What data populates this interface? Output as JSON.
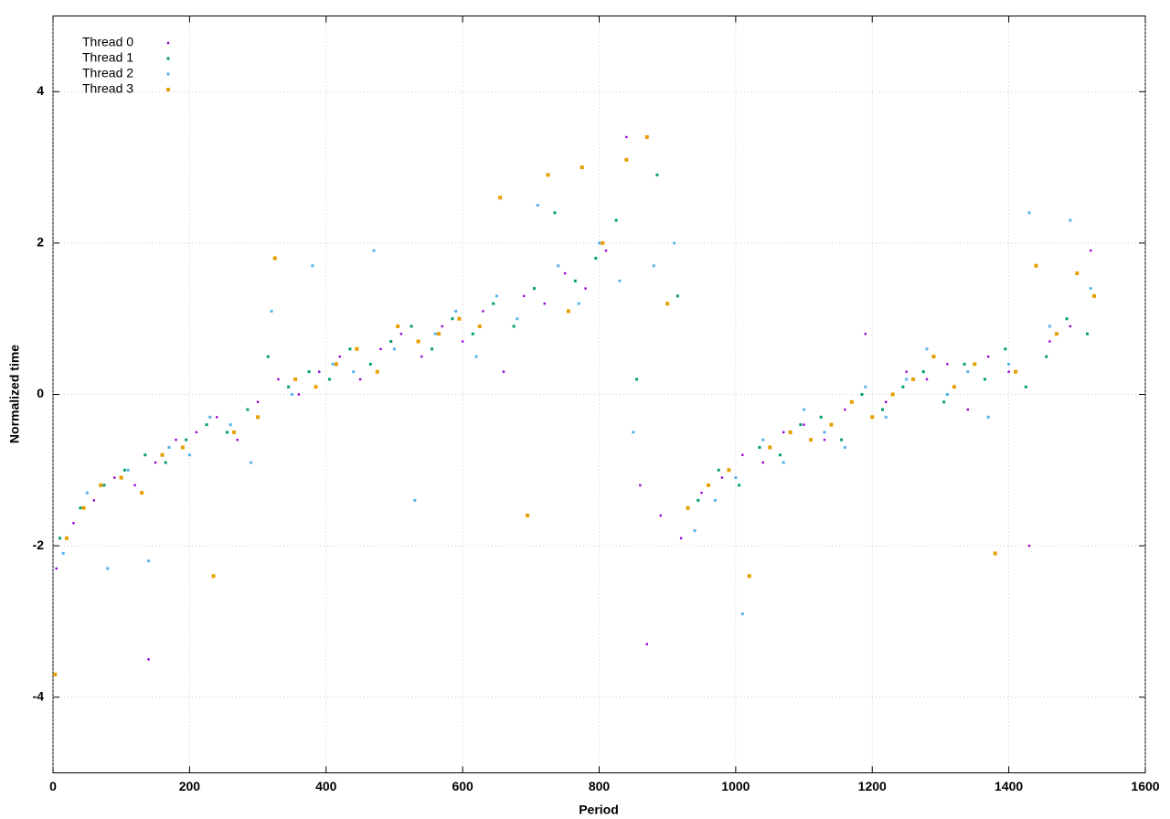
{
  "chart_data": {
    "type": "scatter",
    "x_label": "Period",
    "y_label": "Normalized time",
    "xlim": [
      0,
      1600
    ],
    "ylim": [
      -5,
      5
    ],
    "xticks": [
      0,
      200,
      400,
      600,
      800,
      1000,
      1200,
      1400,
      1600
    ],
    "yticks": [
      -4,
      -2,
      0,
      2,
      4
    ],
    "grid": true,
    "legend": "top-left",
    "series": [
      {
        "name": "Thread 0",
        "color": "#9400d3",
        "x": [
          5,
          30,
          60,
          90,
          120,
          140,
          150,
          180,
          210,
          240,
          270,
          300,
          330,
          360,
          390,
          420,
          450,
          480,
          510,
          540,
          570,
          600,
          630,
          660,
          690,
          720,
          750,
          780,
          810,
          840,
          860,
          870,
          890,
          920,
          950,
          980,
          1010,
          1040,
          1070,
          1100,
          1130,
          1160,
          1190,
          1220,
          1250,
          1280,
          1310,
          1340,
          1370,
          1400,
          1430,
          1460,
          1490,
          1520
        ],
        "values": [
          -2.3,
          -1.7,
          -1.4,
          -1.1,
          -1.2,
          -3.5,
          -0.9,
          -0.6,
          -0.5,
          -0.3,
          -0.6,
          -0.1,
          0.2,
          0.0,
          0.3,
          0.5,
          0.2,
          0.6,
          0.8,
          0.5,
          0.9,
          0.7,
          1.1,
          0.3,
          1.3,
          1.2,
          1.6,
          1.4,
          1.9,
          3.4,
          -1.2,
          -3.3,
          -1.6,
          -1.9,
          -1.3,
          -1.1,
          -0.8,
          -0.9,
          -0.5,
          -0.4,
          -0.6,
          -0.2,
          0.8,
          -0.1,
          0.3,
          0.2,
          0.4,
          -0.2,
          0.5,
          0.3,
          -2.0,
          0.7,
          0.9,
          1.9
        ]
      },
      {
        "name": "Thread 1",
        "color": "#009e73",
        "x": [
          10,
          40,
          75,
          105,
          135,
          165,
          195,
          225,
          255,
          285,
          315,
          345,
          375,
          405,
          435,
          465,
          495,
          525,
          555,
          585,
          615,
          645,
          675,
          705,
          735,
          765,
          795,
          825,
          855,
          885,
          915,
          945,
          975,
          1005,
          1035,
          1065,
          1095,
          1125,
          1155,
          1185,
          1215,
          1245,
          1275,
          1305,
          1335,
          1365,
          1395,
          1425,
          1455,
          1485,
          1515
        ],
        "values": [
          -1.9,
          -1.5,
          -1.2,
          -1.0,
          -0.8,
          -0.9,
          -0.6,
          -0.4,
          -0.5,
          -0.2,
          0.5,
          0.1,
          0.3,
          0.2,
          0.6,
          0.4,
          0.7,
          0.9,
          0.6,
          1.0,
          0.8,
          1.2,
          0.9,
          1.4,
          2.4,
          1.5,
          1.8,
          2.3,
          0.2,
          2.9,
          1.3,
          -1.4,
          -1.0,
          -1.2,
          -0.7,
          -0.8,
          -0.4,
          -0.3,
          -0.6,
          0.0,
          -0.2,
          0.1,
          0.3,
          -0.1,
          0.4,
          0.2,
          0.6,
          0.1,
          0.5,
          1.0,
          0.8
        ]
      },
      {
        "name": "Thread 2",
        "color": "#56b4e9",
        "x": [
          15,
          50,
          80,
          110,
          140,
          170,
          200,
          230,
          260,
          290,
          320,
          350,
          380,
          410,
          440,
          470,
          500,
          530,
          560,
          590,
          620,
          650,
          680,
          710,
          740,
          770,
          800,
          830,
          850,
          880,
          910,
          940,
          970,
          1000,
          1010,
          1040,
          1070,
          1100,
          1130,
          1160,
          1190,
          1220,
          1250,
          1280,
          1310,
          1340,
          1370,
          1400,
          1430,
          1460,
          1490,
          1520
        ],
        "values": [
          -2.1,
          -1.3,
          -2.3,
          -1.0,
          -2.2,
          -0.7,
          -0.8,
          -0.3,
          -0.4,
          -0.9,
          1.1,
          0.0,
          1.7,
          0.4,
          0.3,
          1.9,
          0.6,
          -1.4,
          0.8,
          1.1,
          0.5,
          1.3,
          1.0,
          2.5,
          1.7,
          1.2,
          2.0,
          1.5,
          -0.5,
          1.7,
          2.0,
          -1.8,
          -1.4,
          -1.1,
          -2.9,
          -0.6,
          -0.9,
          -0.2,
          -0.5,
          -0.7,
          0.1,
          -0.3,
          0.2,
          0.6,
          0.0,
          0.3,
          -0.3,
          0.4,
          2.4,
          0.9,
          2.3,
          1.4
        ]
      },
      {
        "name": "Thread 3",
        "color": "#e69f00",
        "x": [
          3,
          20,
          45,
          70,
          100,
          130,
          160,
          190,
          235,
          265,
          300,
          325,
          355,
          385,
          415,
          445,
          475,
          505,
          535,
          565,
          595,
          625,
          655,
          695,
          725,
          755,
          775,
          805,
          840,
          870,
          900,
          930,
          960,
          990,
          1020,
          1050,
          1080,
          1110,
          1140,
          1170,
          1200,
          1230,
          1260,
          1290,
          1320,
          1350,
          1380,
          1410,
          1440,
          1470,
          1500,
          1525
        ],
        "values": [
          -3.7,
          -1.9,
          -1.5,
          -1.2,
          -1.1,
          -1.3,
          -0.8,
          -0.7,
          -2.4,
          -0.5,
          -0.3,
          1.8,
          0.2,
          0.1,
          0.4,
          0.6,
          0.3,
          0.9,
          0.7,
          0.8,
          1.0,
          0.9,
          2.6,
          -1.6,
          2.9,
          1.1,
          3.0,
          2.0,
          3.1,
          3.4,
          1.2,
          -1.5,
          -1.2,
          -1.0,
          -2.4,
          -0.7,
          -0.5,
          -0.6,
          -0.4,
          -0.1,
          -0.3,
          0.0,
          0.2,
          0.5,
          0.1,
          0.4,
          -2.1,
          0.3,
          1.7,
          0.8,
          1.6,
          1.3
        ]
      }
    ]
  }
}
